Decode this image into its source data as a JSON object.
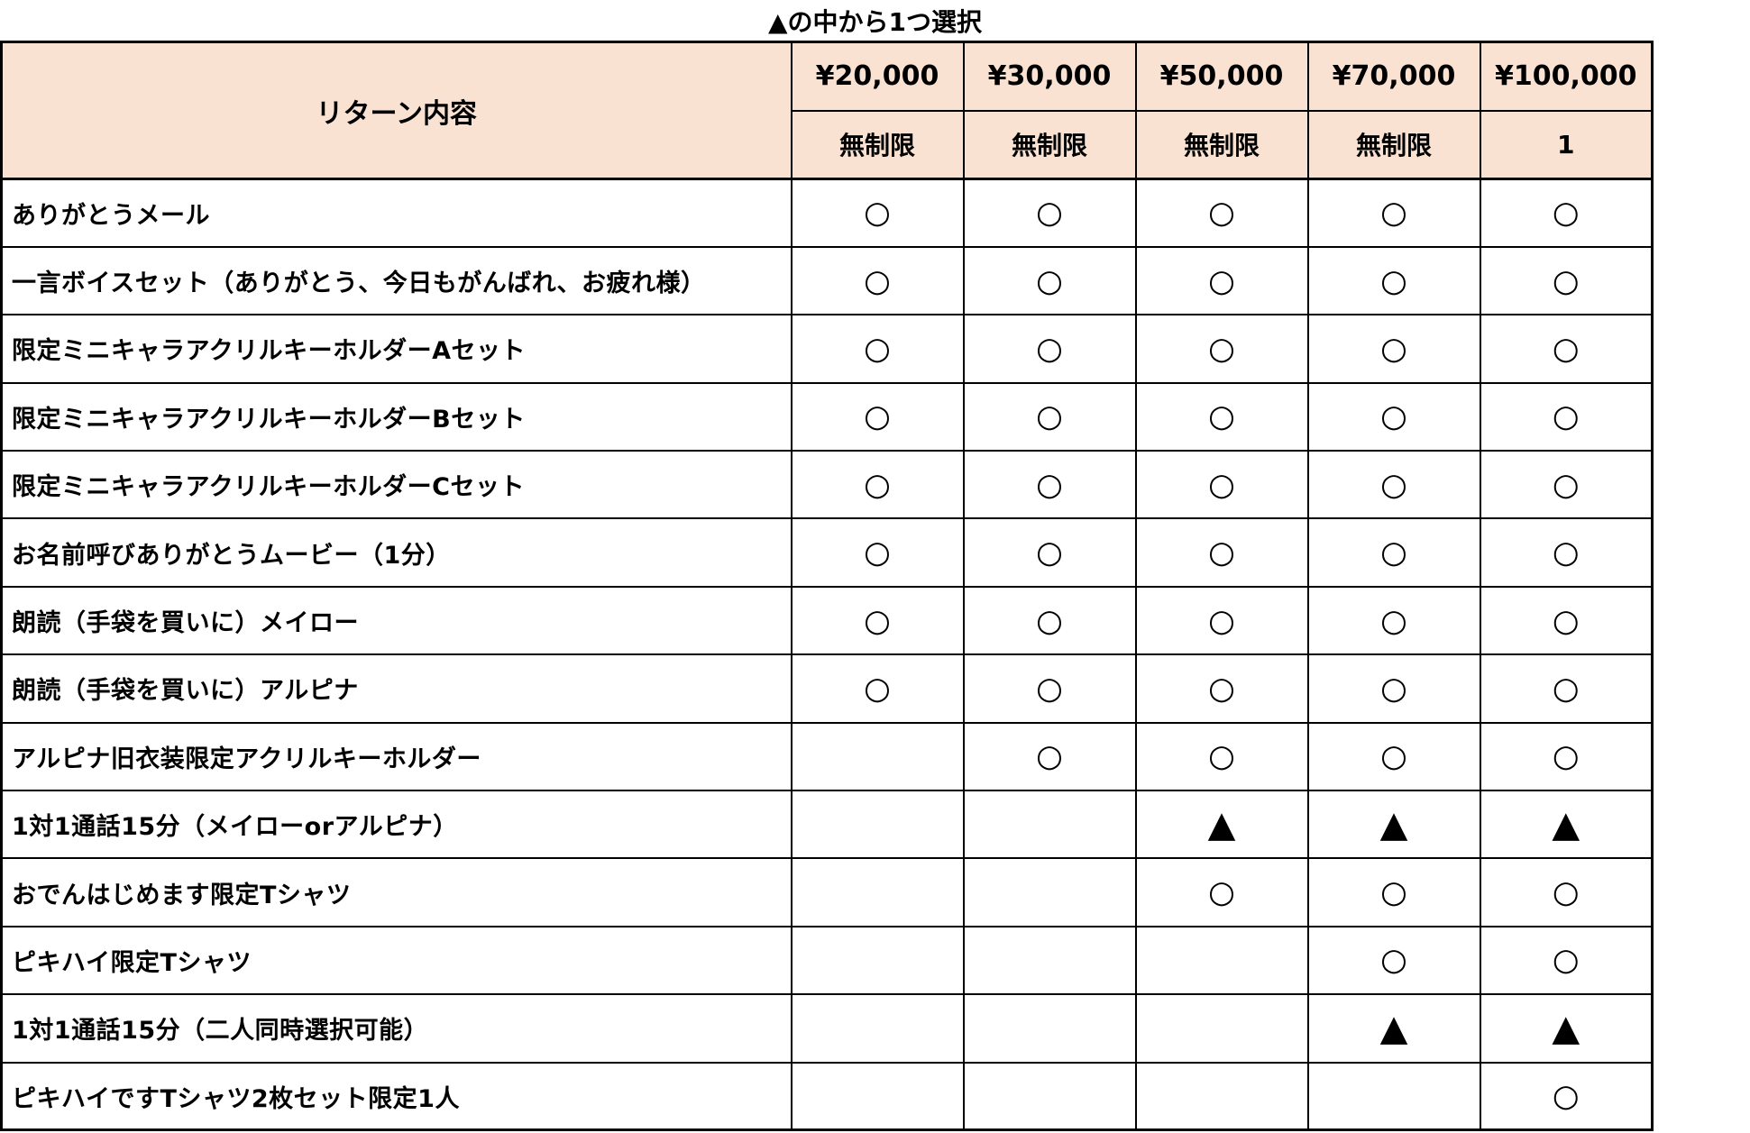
{
  "title": "▲の中から1つ選択",
  "colors": {
    "header_bg": "#F9E2D2",
    "border": "#000000",
    "background": "#FFFFFF",
    "text": "#000000"
  },
  "table": {
    "corner_header": "リターン内容",
    "price_columns": [
      {
        "price": "¥20,000",
        "limit": "無制限"
      },
      {
        "price": "¥30,000",
        "limit": "無制限"
      },
      {
        "price": "¥50,000",
        "limit": "無制限"
      },
      {
        "price": "¥70,000",
        "limit": "無制限"
      },
      {
        "price": "¥100,000",
        "limit": "1"
      }
    ],
    "mark_glyphs": {
      "circle": "○",
      "triangle": "▲",
      "none": ""
    },
    "rows": [
      {
        "label": "ありがとうメール",
        "marks": [
          "circle",
          "circle",
          "circle",
          "circle",
          "circle"
        ]
      },
      {
        "label": "一言ボイスセット（ありがとう、今日もがんばれ、お疲れ様）",
        "marks": [
          "circle",
          "circle",
          "circle",
          "circle",
          "circle"
        ]
      },
      {
        "label": "限定ミニキャラアクリルキーホルダーAセット",
        "marks": [
          "circle",
          "circle",
          "circle",
          "circle",
          "circle"
        ]
      },
      {
        "label": "限定ミニキャラアクリルキーホルダーBセット",
        "marks": [
          "circle",
          "circle",
          "circle",
          "circle",
          "circle"
        ]
      },
      {
        "label": "限定ミニキャラアクリルキーホルダーCセット",
        "marks": [
          "circle",
          "circle",
          "circle",
          "circle",
          "circle"
        ]
      },
      {
        "label": "お名前呼びありがとうムービー（1分）",
        "marks": [
          "circle",
          "circle",
          "circle",
          "circle",
          "circle"
        ]
      },
      {
        "label": "朗読（手袋を買いに）メイロー",
        "marks": [
          "circle",
          "circle",
          "circle",
          "circle",
          "circle"
        ]
      },
      {
        "label": "朗読（手袋を買いに）アルピナ",
        "marks": [
          "circle",
          "circle",
          "circle",
          "circle",
          "circle"
        ]
      },
      {
        "label": "アルピナ旧衣装限定アクリルキーホルダー",
        "marks": [
          "none",
          "circle",
          "circle",
          "circle",
          "circle"
        ]
      },
      {
        "label": "1対1通話15分（メイローorアルピナ）",
        "marks": [
          "none",
          "none",
          "triangle",
          "triangle",
          "triangle"
        ]
      },
      {
        "label": "おでんはじめます限定Tシャツ",
        "marks": [
          "none",
          "none",
          "circle",
          "circle",
          "circle"
        ]
      },
      {
        "label": "ピキハイ限定Tシャツ",
        "marks": [
          "none",
          "none",
          "none",
          "circle",
          "circle"
        ]
      },
      {
        "label": "1対1通話15分（二人同時選択可能）",
        "marks": [
          "none",
          "none",
          "none",
          "triangle",
          "triangle"
        ]
      },
      {
        "label": "ピキハイですTシャツ2枚セット限定1人",
        "marks": [
          "none",
          "none",
          "none",
          "none",
          "circle"
        ]
      }
    ]
  }
}
